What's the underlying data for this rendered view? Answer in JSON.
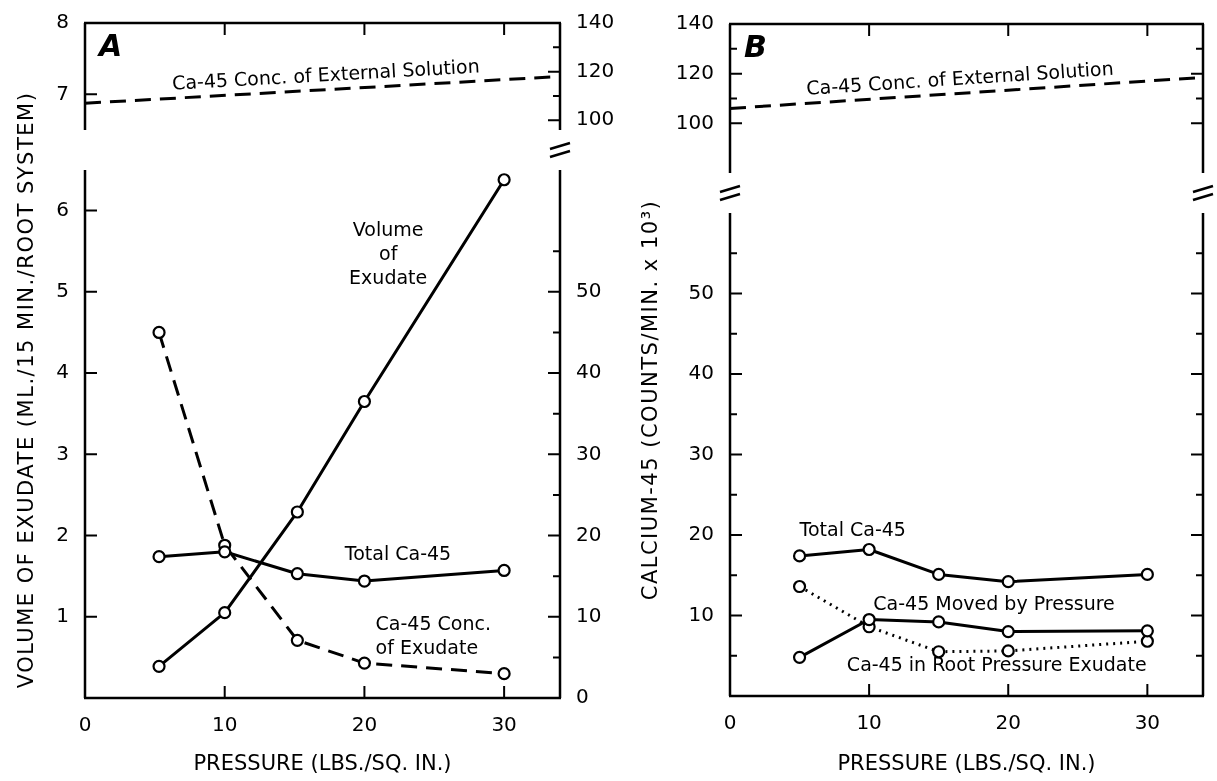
{
  "chart_data": [
    {
      "type": "line",
      "title": "A",
      "xlim": [
        0,
        34
      ],
      "xticks": [
        10,
        20,
        30
      ],
      "ylim": [
        6.5,
        8
      ],
      "yticks": [
        7,
        8
      ],
      "y2lim": [
        96,
        140
      ],
      "y2ticks": [
        100,
        {
          "value": 110,
          "label": null
        },
        120,
        {
          "value": 130,
          "label": null
        },
        140
      ],
      "tick_labels": "y",
      "series": [
        {
          "name": "Ca-45 Conc. of External Solution",
          "color": "#000000",
          "axis": "y2",
          "x": [
            0,
            34
          ],
          "values": [
            107,
            118
          ],
          "line_style": "dashed",
          "marker": "none"
        }
      ]
    },
    {
      "type": "line",
      "xlabel": "PRESSURE (LBS./SQ. IN.)",
      "ylabel": "VOLUME OF EXUDATE (ML./15 MIN./ROOT SYSTEM)",
      "xlim": [
        0,
        34
      ],
      "xticks": [
        0,
        10,
        20,
        30
      ],
      "ylim": [
        0,
        6.5
      ],
      "yticks": [
        1,
        2,
        3,
        4,
        5,
        6
      ],
      "y2lim": [
        0,
        65
      ],
      "y2ticks": [
        0,
        {
          "value": 5,
          "label": null
        },
        10,
        {
          "value": 15,
          "label": null
        },
        20,
        {
          "value": 25,
          "label": null
        },
        30,
        {
          "value": 35,
          "label": null
        },
        40,
        {
          "value": 45,
          "label": null
        },
        50,
        {
          "value": 55,
          "label": null
        }
      ],
      "series": [
        {
          "name": "Volume of Exudate",
          "color": "#000000",
          "x": [
            5.3,
            10,
            15.2,
            20,
            30
          ],
          "values": [
            0.39,
            1.05,
            2.29,
            3.65,
            6.38
          ],
          "line_style": "solid",
          "marker": "circle"
        },
        {
          "name": "Total Ca-45",
          "color": "#000000",
          "axis": "y2",
          "x": [
            5.3,
            10,
            15.2,
            20,
            30
          ],
          "values": [
            17.4,
            18.0,
            15.3,
            14.4,
            15.7
          ],
          "line_style": "solid",
          "marker": "circle"
        },
        {
          "name": "Ca-45 Conc. of Exudate",
          "color": "#000000",
          "axis": "y2",
          "x": [
            5.3,
            10,
            15.2,
            20,
            30
          ],
          "values": [
            45,
            18.8,
            7.1,
            4.3,
            3.0
          ],
          "line_style": "dashed",
          "marker": "circle"
        }
      ]
    },
    {
      "type": "line",
      "title": "B",
      "xlim": [
        0,
        34
      ],
      "xticks": [
        10,
        20,
        30
      ],
      "ylim": [
        80,
        140
      ],
      "yticks": [
        100,
        {
          "value": 110,
          "label": null
        },
        120,
        {
          "value": 130,
          "label": null
        },
        140
      ],
      "tick_labels": "y",
      "series": [
        {
          "name": "Ca-45 Conc. of External Solution",
          "color": "#000000",
          "x": [
            0,
            34
          ],
          "values": [
            106,
            118.5
          ],
          "line_style": "dashed",
          "marker": "none"
        }
      ]
    },
    {
      "type": "line",
      "xlabel": "PRESSURE (LBS./SQ. IN.)",
      "ylabel": "CALCIUM-45 (COUNTS/MIN. x 10³)",
      "xlim": [
        0,
        34
      ],
      "xticks": [
        0,
        10,
        20,
        30
      ],
      "ylim": [
        0,
        60
      ],
      "yticks": [
        {
          "value": 5,
          "label": null
        },
        10,
        {
          "value": 15,
          "label": null
        },
        20,
        {
          "value": 25,
          "label": null
        },
        30,
        {
          "value": 35,
          "label": null
        },
        40,
        {
          "value": 45,
          "label": null
        },
        50,
        {
          "value": 55,
          "label": null
        }
      ],
      "series": [
        {
          "name": "Total Ca-45",
          "color": "#000000",
          "x": [
            5,
            10,
            15,
            20,
            30
          ],
          "values": [
            17.4,
            18.2,
            15.1,
            14.2,
            15.1
          ],
          "line_style": "solid",
          "marker": "circle"
        },
        {
          "name": "Ca-45 Moved by Pressure",
          "color": "#000000",
          "x": [
            5,
            10,
            15,
            20,
            30
          ],
          "values": [
            4.8,
            9.5,
            9.2,
            8.0,
            8.1
          ],
          "line_style": "solid",
          "marker": "circle"
        },
        {
          "name": "Ca-45 in Root Pressure Exudate",
          "color": "#000000",
          "x": [
            5,
            10,
            15,
            20,
            30
          ],
          "values": [
            13.6,
            8.6,
            5.5,
            5.6,
            6.8
          ],
          "line_style": "dotted",
          "marker": "circle"
        }
      ]
    }
  ]
}
